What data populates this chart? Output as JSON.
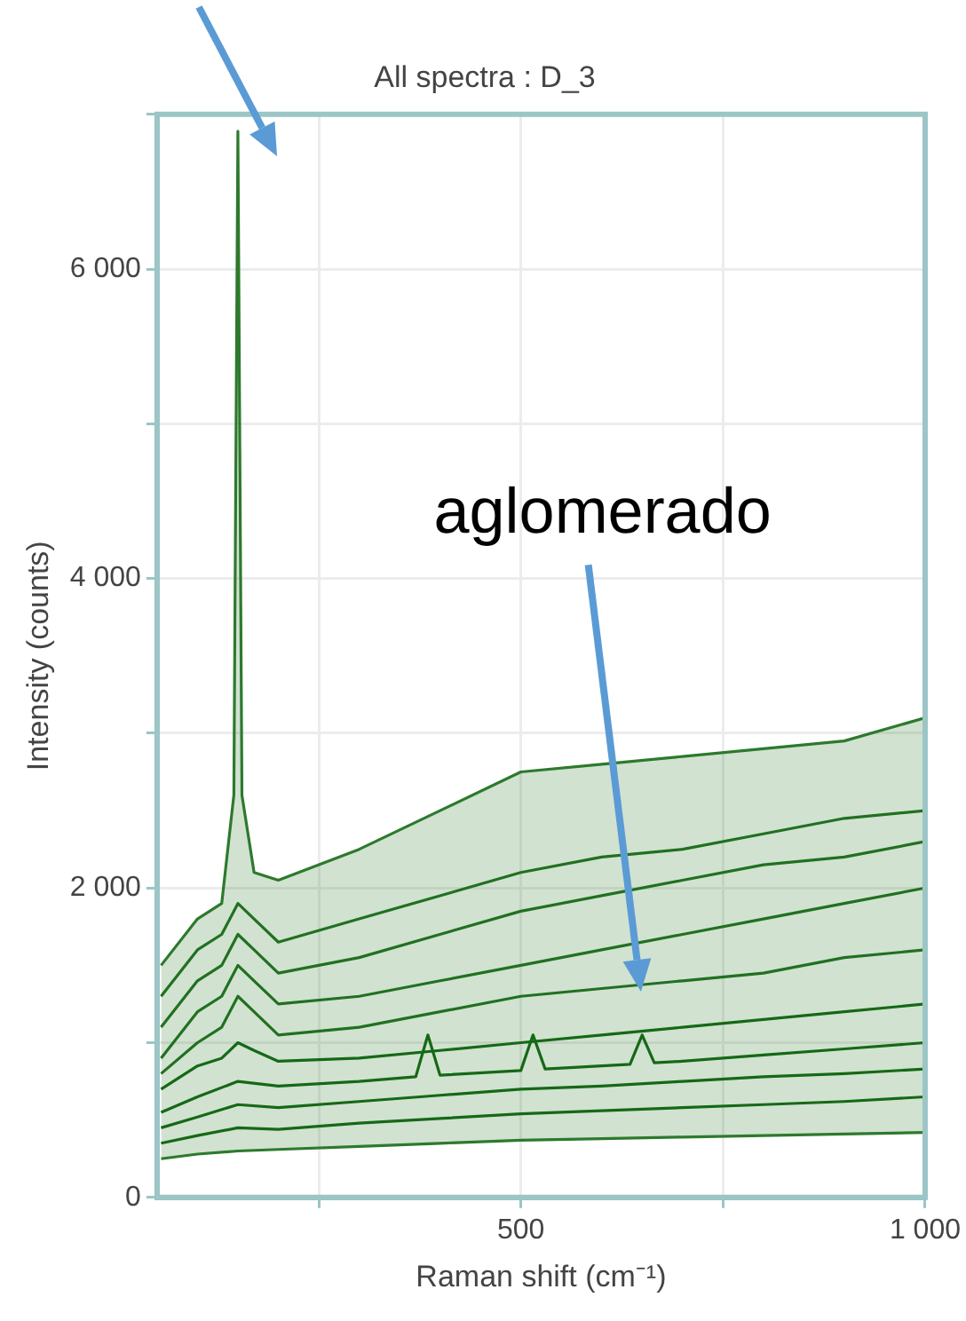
{
  "chart_data": {
    "type": "line",
    "title": "All spectra : D_3",
    "xlabel": "Raman shift (cm⁻¹)",
    "ylabel": "Intensity (counts)",
    "annotations": [
      "aglomerado"
    ],
    "xlim": [
      50,
      1000
    ],
    "xticks": [
      {
        "value": 250,
        "label": null
      },
      500,
      {
        "value": 750,
        "label": null
      },
      {
        "value": 1000,
        "label": "1 000"
      }
    ],
    "ylim": [
      0,
      7000
    ],
    "yticks": [
      {
        "value": 0,
        "label": "0"
      },
      {
        "value": 1000,
        "label": null
      },
      {
        "value": 2000,
        "label": "2 000"
      },
      {
        "value": 3000,
        "label": null
      },
      {
        "value": 4000,
        "label": "4 000"
      },
      {
        "value": 5000,
        "label": null
      },
      {
        "value": 6000,
        "label": "6 000"
      },
      {
        "value": 7000,
        "label": null
      }
    ],
    "grid": true,
    "legend": false,
    "marker": "none",
    "line_style": "solid",
    "series": [
      {
        "color": "#2d7a2d",
        "x": [
          55,
          100,
          130,
          145,
          150,
          155,
          170,
          200,
          300,
          400,
          500,
          600,
          700,
          800,
          900,
          1000
        ],
        "values": [
          1500,
          1800,
          1900,
          2600,
          6890,
          2600,
          2100,
          2050,
          2250,
          2500,
          2750,
          2800,
          2850,
          2900,
          2950,
          3100
        ],
        "lower": [
          250,
          280,
          290,
          300,
          300,
          300,
          300,
          310,
          330,
          350,
          370,
          380,
          390,
          400,
          410,
          420
        ],
        "upper": [
          1500,
          1800,
          1900,
          2600,
          6890,
          2600,
          2100,
          2050,
          2250,
          2500,
          2750,
          2800,
          2850,
          2900,
          2950,
          3100
        ]
      },
      {
        "color": "#1e6e1e",
        "x": [
          55,
          100,
          130,
          150,
          170,
          200,
          300,
          400,
          500,
          600,
          700,
          800,
          900,
          1000
        ],
        "values": [
          1300,
          1600,
          1700,
          1900,
          1800,
          1650,
          1800,
          1950,
          2100,
          2200,
          2250,
          2350,
          2450,
          2500
        ]
      },
      {
        "color": "#1e6e1e",
        "x": [
          55,
          100,
          130,
          150,
          170,
          200,
          300,
          400,
          500,
          600,
          700,
          800,
          900,
          1000
        ],
        "values": [
          1100,
          1400,
          1500,
          1700,
          1600,
          1450,
          1550,
          1700,
          1850,
          1950,
          2050,
          2150,
          2200,
          2300
        ]
      },
      {
        "color": "#1e6e1e",
        "x": [
          55,
          100,
          130,
          150,
          170,
          200,
          300,
          400,
          500,
          600,
          700,
          800,
          900,
          1000
        ],
        "values": [
          900,
          1200,
          1300,
          1500,
          1400,
          1250,
          1300,
          1400,
          1500,
          1600,
          1700,
          1800,
          1900,
          2000
        ]
      },
      {
        "color": "#1e6e1e",
        "x": [
          55,
          100,
          130,
          150,
          170,
          200,
          300,
          400,
          500,
          600,
          700,
          800,
          900,
          1000
        ],
        "values": [
          800,
          1000,
          1100,
          1300,
          1200,
          1050,
          1100,
          1200,
          1300,
          1350,
          1400,
          1450,
          1550,
          1600
        ]
      },
      {
        "color": "#0f640f",
        "x": [
          55,
          100,
          130,
          150,
          170,
          200,
          300,
          400,
          500,
          600,
          700,
          800,
          900,
          1000
        ],
        "values": [
          700,
          850,
          900,
          1000,
          950,
          880,
          900,
          950,
          1000,
          1050,
          1100,
          1150,
          1200,
          1250
        ]
      },
      {
        "color": "#0f640f",
        "x": [
          55,
          100,
          150,
          200,
          300,
          370,
          385,
          400,
          500,
          515,
          530,
          600,
          635,
          650,
          665,
          700,
          800,
          900,
          1000
        ],
        "values": [
          550,
          650,
          750,
          720,
          750,
          780,
          1050,
          790,
          820,
          1050,
          830,
          850,
          860,
          1050,
          870,
          880,
          920,
          960,
          1000
        ]
      },
      {
        "color": "#0f640f",
        "x": [
          55,
          100,
          150,
          200,
          300,
          400,
          500,
          600,
          700,
          800,
          900,
          1000
        ],
        "values": [
          450,
          520,
          600,
          580,
          620,
          660,
          700,
          720,
          750,
          780,
          800,
          830
        ]
      },
      {
        "color": "#0f640f",
        "x": [
          55,
          100,
          150,
          200,
          300,
          400,
          500,
          600,
          700,
          800,
          900,
          1000
        ],
        "values": [
          350,
          400,
          450,
          440,
          480,
          510,
          540,
          560,
          580,
          600,
          620,
          650
        ]
      },
      {
        "color": "#2d7a2d",
        "x": [
          55,
          100,
          150,
          200,
          300,
          400,
          500,
          600,
          700,
          800,
          900,
          1000
        ],
        "values": [
          250,
          280,
          300,
          310,
          330,
          350,
          370,
          380,
          390,
          400,
          410,
          420
        ]
      }
    ]
  }
}
